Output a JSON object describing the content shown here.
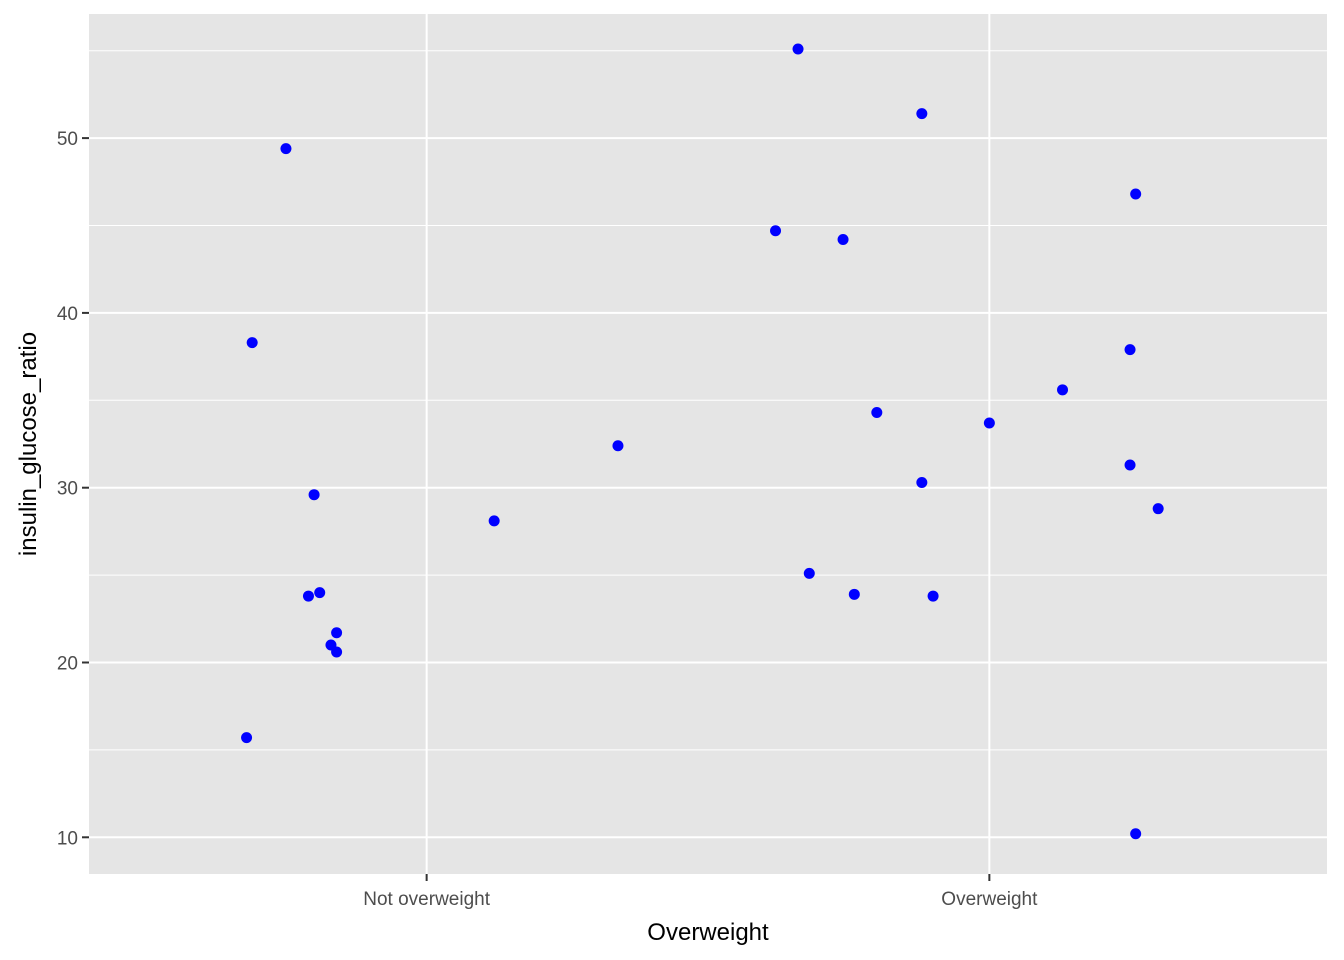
{
  "chart_data": {
    "type": "scatter",
    "title": "",
    "xlabel": "Overweight",
    "ylabel": "insulin_glucose_ratio",
    "categories": [
      "Not overweight",
      "Overweight"
    ],
    "xlim": [
      0.4,
      2.6
    ],
    "ylim": [
      7.9,
      57.1
    ],
    "y_ticks": [
      10,
      20,
      30,
      40,
      50
    ],
    "grid": true,
    "legend": "none",
    "point_color": "#0000ff",
    "panel_color": "#e5e5e5",
    "gridline_color": "#ffffff",
    "points": [
      {
        "x": 0.75,
        "y": 49.4
      },
      {
        "x": 0.69,
        "y": 38.3
      },
      {
        "x": 0.8,
        "y": 29.6
      },
      {
        "x": 0.79,
        "y": 23.8
      },
      {
        "x": 0.81,
        "y": 24.0
      },
      {
        "x": 0.84,
        "y": 21.7
      },
      {
        "x": 0.83,
        "y": 21.0
      },
      {
        "x": 0.84,
        "y": 20.6
      },
      {
        "x": 0.68,
        "y": 15.7
      },
      {
        "x": 1.12,
        "y": 28.1
      },
      {
        "x": 1.34,
        "y": 32.4
      },
      {
        "x": 1.66,
        "y": 55.1
      },
      {
        "x": 1.62,
        "y": 44.7
      },
      {
        "x": 1.74,
        "y": 44.2
      },
      {
        "x": 1.68,
        "y": 25.1
      },
      {
        "x": 1.76,
        "y": 23.9
      },
      {
        "x": 1.8,
        "y": 34.3
      },
      {
        "x": 1.88,
        "y": 51.4
      },
      {
        "x": 1.88,
        "y": 30.3
      },
      {
        "x": 1.9,
        "y": 23.8
      },
      {
        "x": 2.0,
        "y": 33.7
      },
      {
        "x": 2.13,
        "y": 35.6
      },
      {
        "x": 2.26,
        "y": 46.8
      },
      {
        "x": 2.25,
        "y": 37.9
      },
      {
        "x": 2.25,
        "y": 31.3
      },
      {
        "x": 2.3,
        "y": 28.8
      },
      {
        "x": 2.26,
        "y": 10.2
      }
    ]
  }
}
